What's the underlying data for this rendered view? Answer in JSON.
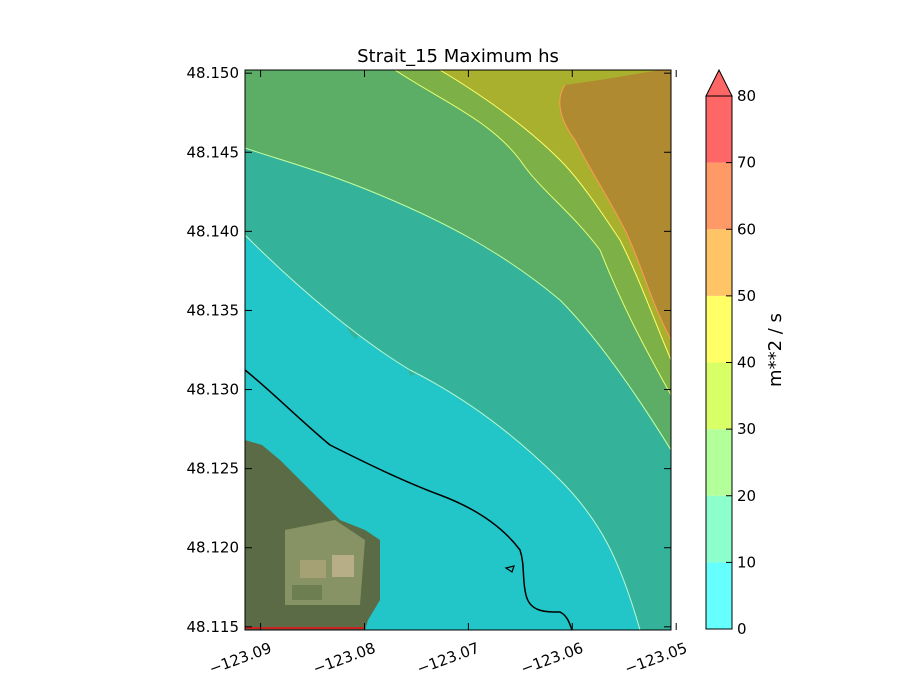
{
  "chart_data": {
    "type": "heatmap",
    "title": "Strait_15 Maximum hs",
    "xlabel": "",
    "ylabel": "",
    "xlim": [
      -123.0915,
      -123.0505
    ],
    "ylim": [
      48.1148,
      48.1502
    ],
    "xticks": [
      -123.09,
      -123.08,
      -123.07,
      -123.06,
      -123.05
    ],
    "xtick_labels": [
      "−123.09",
      "−123.08",
      "−123.07",
      "−123.06",
      "−123.05"
    ],
    "yticks": [
      48.15,
      48.145,
      48.14,
      48.135,
      48.13,
      48.125,
      48.12,
      48.115
    ],
    "ytick_labels": [
      "48.150",
      "48.145",
      "48.140",
      "48.135",
      "48.130",
      "48.125",
      "48.120",
      "48.115"
    ],
    "colorbar": {
      "label": "m**2 / s",
      "levels": [
        0,
        10,
        20,
        30,
        40,
        50,
        60,
        70,
        80
      ],
      "tick_labels": [
        "0",
        "10",
        "20",
        "30",
        "40",
        "50",
        "60",
        "70",
        "80"
      ],
      "colors": [
        "#66ffff",
        "#8cffcc",
        "#b3ff99",
        "#d9ff66",
        "#ffff66",
        "#ffc466",
        "#ff9966",
        "#ff6666"
      ],
      "extend": "max",
      "extend_color": "#ff6666"
    },
    "filled_contours": [
      {
        "range": [
          0,
          10
        ],
        "color": "#22c6c8"
      },
      {
        "range": [
          10,
          20
        ],
        "color": "#35b39a"
      },
      {
        "range": [
          20,
          30
        ],
        "color": "#5cae66"
      },
      {
        "range": [
          30,
          40
        ],
        "color": "#7eb048"
      },
      {
        "range": [
          40,
          50
        ],
        "color": "#a8b02e"
      },
      {
        "range": [
          50,
          60
        ],
        "color": "#b08a30"
      }
    ],
    "coastline_color": "#000000",
    "background": "satellite imagery"
  }
}
